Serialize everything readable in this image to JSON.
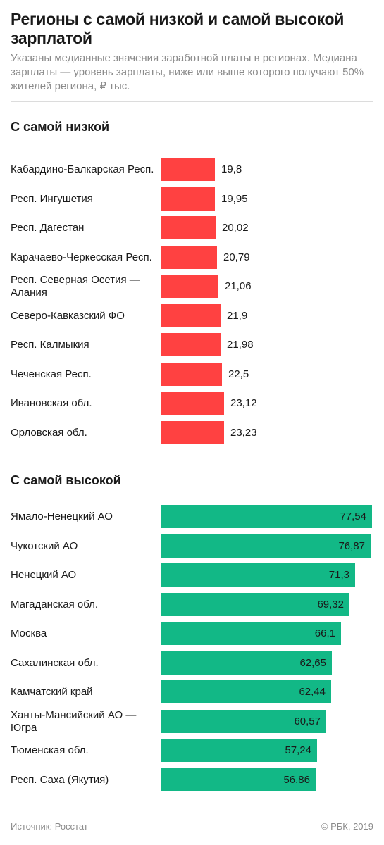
{
  "header": {
    "title": "Регионы с самой низкой и самой высокой зарплатой",
    "subtitle": "Указаны медианные значения заработной платы в регионах. Медиана зарплаты — уровень зарплаты, ниже или выше которого получают 50% жителей региона, ₽ тыс."
  },
  "colors": {
    "low": "#ff4141",
    "high": "#12b886"
  },
  "chart_data": [
    {
      "type": "bar",
      "orientation": "horizontal",
      "title": "С самой низкой",
      "categories": [
        "Кабардино-Балкарская Респ.",
        "Респ. Ингушетия",
        "Респ. Дагестан",
        "Карачаево-Черкесская Респ.",
        "Респ. Северная Осетия — Алания",
        "Северо-Кавказский ФО",
        "Респ. Калмыкия",
        "Чеченская Респ.",
        "Ивановская обл.",
        "Орловская обл."
      ],
      "values": [
        19.8,
        19.95,
        20.02,
        20.79,
        21.06,
        21.9,
        21.98,
        22.5,
        23.12,
        23.23
      ],
      "value_labels": [
        "19,8",
        "19,95",
        "20,02",
        "20,79",
        "21,06",
        "21,9",
        "21,98",
        "22,5",
        "23,12",
        "23,23"
      ],
      "xlim": [
        0,
        78
      ],
      "grid": false
    },
    {
      "type": "bar",
      "orientation": "horizontal",
      "title": "С самой высокой",
      "categories": [
        "Ямало-Ненецкий АО",
        "Чукотский АО",
        "Ненецкий АО",
        "Магаданская обл.",
        "Москва",
        "Сахалинская обл.",
        "Камчатский край",
        "Ханты-Мансийский АО — Югра",
        "Тюменская обл.",
        "Респ. Саха (Якутия)"
      ],
      "values": [
        77.54,
        76.87,
        71.3,
        69.32,
        66.1,
        62.65,
        62.44,
        60.57,
        57.24,
        56.86
      ],
      "value_labels": [
        "77,54",
        "76,87",
        "71,3",
        "69,32",
        "66,1",
        "62,65",
        "62,44",
        "60,57",
        "57,24",
        "56,86"
      ],
      "xlim": [
        0,
        78
      ],
      "grid": false
    }
  ],
  "footer": {
    "source": "Источник: Росстат",
    "copyright": "© РБК, 2019"
  }
}
